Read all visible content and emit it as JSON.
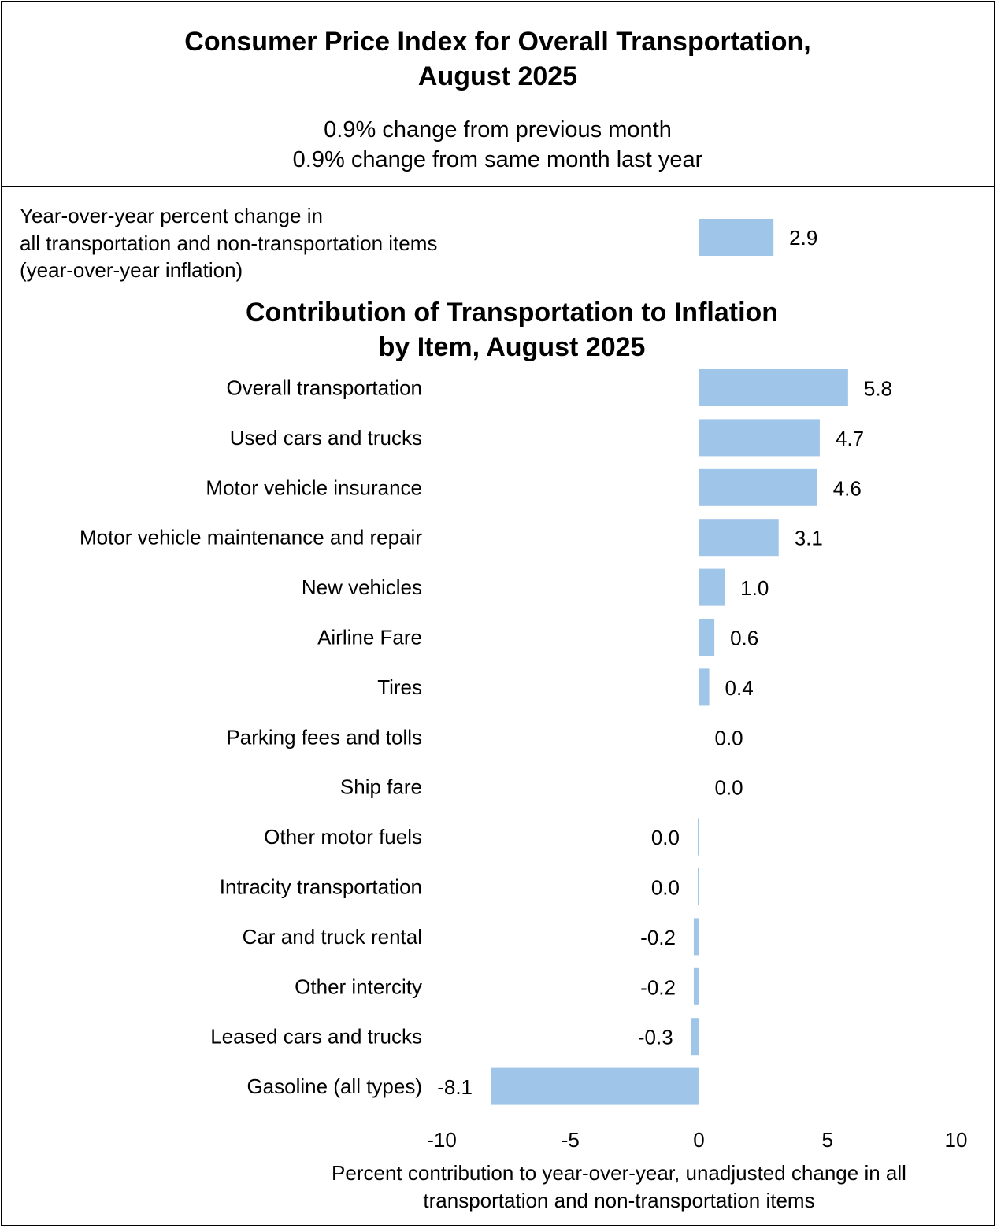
{
  "header": {
    "title_line1": "Consumer Price Index for Overall Transportation,",
    "title_line2": "August 2025",
    "change_month": "0.9% change from previous month",
    "change_year": "0.9% change from same month last year"
  },
  "yoy": {
    "label_lines": [
      "Year-over-year percent change in",
      "all transportation and non-transportation items",
      "(year-over-year inflation)"
    ],
    "value": 2.9,
    "value_label": "2.9"
  },
  "colors": {
    "bar": "#9fc5e8",
    "text": "#000000",
    "border": "#000000"
  },
  "chart_data": {
    "type": "bar",
    "orientation": "horizontal",
    "title_line1": "Contribution of Transportation to Inflation",
    "title_line2": "by Item, August 2025",
    "categories": [
      "Overall transportation",
      "Used cars and trucks",
      "Motor vehicle insurance",
      "Motor vehicle maintenance and repair",
      "New vehicles",
      "Airline Fare",
      "Tires",
      "Parking fees and tolls",
      "Ship fare",
      "Other motor fuels",
      "Intracity transportation",
      "Car and truck rental",
      "Other intercity",
      "Leased cars and trucks",
      "Gasoline (all types)"
    ],
    "values": [
      5.8,
      4.7,
      4.6,
      3.1,
      1.0,
      0.6,
      0.4,
      0.0,
      0.0,
      -0.01,
      -0.01,
      -0.2,
      -0.2,
      -0.3,
      -8.1
    ],
    "value_labels": [
      "5.8",
      "4.7",
      "4.6",
      "3.1",
      "1.0",
      "0.6",
      "0.4",
      "0.0",
      "0.0",
      "0.0",
      "0.0",
      "-0.2",
      "-0.2",
      "-0.3",
      "-8.1"
    ],
    "xlim": [
      -10,
      10
    ],
    "xticks": [
      -10,
      -5,
      0,
      5,
      10
    ],
    "xtick_labels": [
      "-10",
      "-5",
      "0",
      "5",
      "10"
    ],
    "xlabel_line1": "Percent contribution to year-over-year, unadjusted change in all",
    "xlabel_line2": "transportation and non-transportation items",
    "grid": false,
    "legend": "none"
  }
}
